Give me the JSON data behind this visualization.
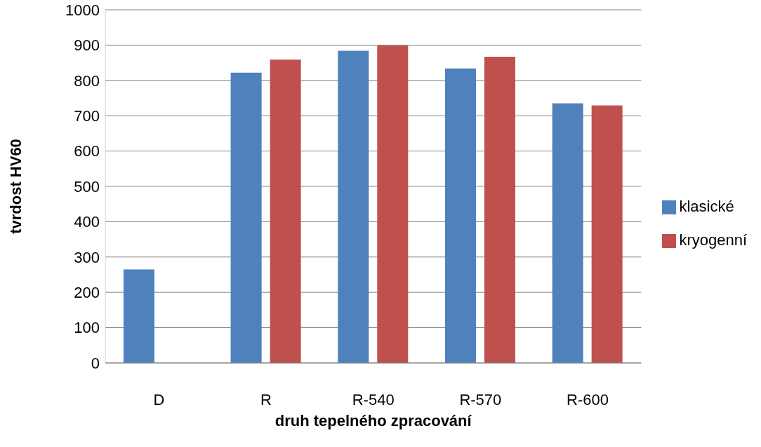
{
  "chart_data": {
    "type": "bar",
    "xlabel": "druh tepelného zpracování",
    "ylabel": "tvrdost  HV60",
    "categories": [
      "D",
      "R",
      "R-540",
      "R-570",
      "R-600"
    ],
    "series": [
      {
        "name": "klasické",
        "color": "#4f81bd",
        "values": [
          265,
          822,
          884,
          834,
          735
        ]
      },
      {
        "name": "kryogenní",
        "color": "#c0504d",
        "values": [
          null,
          859,
          899,
          867,
          729
        ]
      }
    ],
    "ylim": [
      0,
      1000
    ],
    "yticks": [
      0,
      100,
      200,
      300,
      400,
      500,
      600,
      700,
      800,
      900,
      1000
    ],
    "grid": "y",
    "legend": "right"
  }
}
